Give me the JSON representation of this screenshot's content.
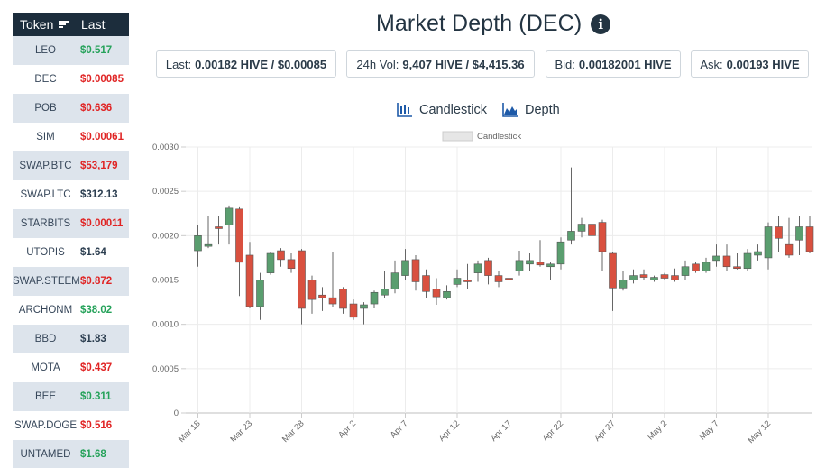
{
  "token_table": {
    "header_token": "Token",
    "header_last": "Last",
    "rows": [
      {
        "token": "LEO",
        "last": "$0.517",
        "trend": "up"
      },
      {
        "token": "DEC",
        "last": "$0.00085",
        "trend": "down"
      },
      {
        "token": "POB",
        "last": "$0.636",
        "trend": "down"
      },
      {
        "token": "SIM",
        "last": "$0.00061",
        "trend": "down"
      },
      {
        "token": "SWAP.BTC",
        "last": "$53,179",
        "trend": "down"
      },
      {
        "token": "SWAP.LTC",
        "last": "$312.13",
        "trend": "flat"
      },
      {
        "token": "STARBITS",
        "last": "$0.00011",
        "trend": "down"
      },
      {
        "token": "UTOPIS",
        "last": "$1.64",
        "trend": "flat"
      },
      {
        "token": "SWAP.STEEM",
        "last": "$0.872",
        "trend": "down"
      },
      {
        "token": "ARCHONM",
        "last": "$38.02",
        "trend": "up"
      },
      {
        "token": "BBD",
        "last": "$1.83",
        "trend": "flat"
      },
      {
        "token": "MOTA",
        "last": "$0.437",
        "trend": "down"
      },
      {
        "token": "BEE",
        "last": "$0.311",
        "trend": "up"
      },
      {
        "token": "SWAP.DOGE",
        "last": "$0.516",
        "trend": "down"
      },
      {
        "token": "UNTAMED",
        "last": "$1.68",
        "trend": "up"
      }
    ]
  },
  "title": "Market Depth (DEC)",
  "stats": {
    "last_label": "Last:",
    "last_value": "0.00182 HIVE / $0.00085",
    "vol_label": "24h Vol:",
    "vol_value": "9,407 HIVE / $4,415.36",
    "bid_label": "Bid:",
    "bid_value": "0.00182001 HIVE",
    "ask_label": "Ask:",
    "ask_value": "0.00193 HIVE"
  },
  "chart_types": {
    "candlestick": "Candlestick",
    "depth": "Depth"
  },
  "colors": {
    "up": "#5a9e6f",
    "down": "#d9503f",
    "header_bg": "#1c2d3c",
    "accent": "#1e5aa8"
  },
  "chart_data": {
    "type": "candlestick",
    "legend": "Candlestick",
    "ylim": [
      0,
      0.003
    ],
    "y_ticks": [
      "0.0030",
      "0.0025",
      "0.0020",
      "0.0015",
      "0.0010",
      "0.0005",
      "0"
    ],
    "x_ticks": [
      "Mar 18",
      "Mar 23",
      "Mar 28",
      "Apr 2",
      "Apr 7",
      "Apr 12",
      "Apr 17",
      "Apr 22",
      "Apr 27",
      "May 2",
      "May 7",
      "May 12"
    ],
    "candles": [
      {
        "date": "Mar 18",
        "o": 0.00183,
        "h": 0.00212,
        "l": 0.00165,
        "c": 0.002
      },
      {
        "date": "Mar 19",
        "o": 0.00188,
        "h": 0.00222,
        "l": 0.00186,
        "c": 0.0019
      },
      {
        "date": "Mar 20",
        "o": 0.0021,
        "h": 0.00222,
        "l": 0.0019,
        "c": 0.00208
      },
      {
        "date": "Mar 21",
        "o": 0.00212,
        "h": 0.00234,
        "l": 0.0019,
        "c": 0.00231
      },
      {
        "date": "Mar 22",
        "o": 0.0023,
        "h": 0.00232,
        "l": 0.00132,
        "c": 0.0017
      },
      {
        "date": "Mar 23",
        "o": 0.00178,
        "h": 0.00193,
        "l": 0.00118,
        "c": 0.0012
      },
      {
        "date": "Mar 24",
        "o": 0.0012,
        "h": 0.00158,
        "l": 0.00105,
        "c": 0.0015
      },
      {
        "date": "Mar 25",
        "o": 0.00158,
        "h": 0.00182,
        "l": 0.00156,
        "c": 0.0018
      },
      {
        "date": "Mar 26",
        "o": 0.00183,
        "h": 0.00186,
        "l": 0.00165,
        "c": 0.00173
      },
      {
        "date": "Mar 27",
        "o": 0.00173,
        "h": 0.0018,
        "l": 0.00158,
        "c": 0.00163
      },
      {
        "date": "Mar 28",
        "o": 0.00183,
        "h": 0.00185,
        "l": 0.001,
        "c": 0.00118
      },
      {
        "date": "Mar 29",
        "o": 0.0015,
        "h": 0.00155,
        "l": 0.00112,
        "c": 0.00128
      },
      {
        "date": "Mar 30",
        "o": 0.00133,
        "h": 0.00142,
        "l": 0.00115,
        "c": 0.0013
      },
      {
        "date": "Mar 31",
        "o": 0.0013,
        "h": 0.00182,
        "l": 0.0012,
        "c": 0.00123
      },
      {
        "date": "Apr 1",
        "o": 0.0014,
        "h": 0.00142,
        "l": 0.00112,
        "c": 0.00118
      },
      {
        "date": "Apr 2",
        "o": 0.00123,
        "h": 0.00128,
        "l": 0.00105,
        "c": 0.00108
      },
      {
        "date": "Apr 3",
        "o": 0.00118,
        "h": 0.00125,
        "l": 0.001,
        "c": 0.00122
      },
      {
        "date": "Apr 4",
        "o": 0.00123,
        "h": 0.00138,
        "l": 0.00118,
        "c": 0.00136
      },
      {
        "date": "Apr 5",
        "o": 0.00133,
        "h": 0.0016,
        "l": 0.0013,
        "c": 0.0014
      },
      {
        "date": "Apr 6",
        "o": 0.0014,
        "h": 0.00172,
        "l": 0.00135,
        "c": 0.00158
      },
      {
        "date": "Apr 7",
        "o": 0.00155,
        "h": 0.00185,
        "l": 0.0015,
        "c": 0.00172
      },
      {
        "date": "Apr 8",
        "o": 0.00173,
        "h": 0.00178,
        "l": 0.00138,
        "c": 0.00148
      },
      {
        "date": "Apr 9",
        "o": 0.00155,
        "h": 0.00162,
        "l": 0.0013,
        "c": 0.00137
      },
      {
        "date": "Apr 10",
        "o": 0.0014,
        "h": 0.00152,
        "l": 0.00122,
        "c": 0.00131
      },
      {
        "date": "Apr 11",
        "o": 0.0013,
        "h": 0.00144,
        "l": 0.00128,
        "c": 0.00137
      },
      {
        "date": "Apr 12",
        "o": 0.00145,
        "h": 0.00162,
        "l": 0.00142,
        "c": 0.00152
      },
      {
        "date": "Apr 13",
        "o": 0.0015,
        "h": 0.00168,
        "l": 0.0014,
        "c": 0.00148
      },
      {
        "date": "Apr 14",
        "o": 0.00158,
        "h": 0.00172,
        "l": 0.00148,
        "c": 0.00168
      },
      {
        "date": "Apr 15",
        "o": 0.00172,
        "h": 0.00175,
        "l": 0.00145,
        "c": 0.00155
      },
      {
        "date": "Apr 16",
        "o": 0.00155,
        "h": 0.0016,
        "l": 0.00142,
        "c": 0.00148
      },
      {
        "date": "Apr 17",
        "o": 0.00152,
        "h": 0.00155,
        "l": 0.00148,
        "c": 0.00151
      },
      {
        "date": "Apr 18",
        "o": 0.0016,
        "h": 0.00183,
        "l": 0.00155,
        "c": 0.00172
      },
      {
        "date": "Apr 19",
        "o": 0.00168,
        "h": 0.0018,
        "l": 0.0016,
        "c": 0.00172
      },
      {
        "date": "Apr 20",
        "o": 0.0017,
        "h": 0.00195,
        "l": 0.00165,
        "c": 0.00167
      },
      {
        "date": "Apr 21",
        "o": 0.00165,
        "h": 0.0017,
        "l": 0.0015,
        "c": 0.00168
      },
      {
        "date": "Apr 22",
        "o": 0.00168,
        "h": 0.00198,
        "l": 0.00162,
        "c": 0.00193
      },
      {
        "date": "Apr 23",
        "o": 0.00195,
        "h": 0.00277,
        "l": 0.0019,
        "c": 0.00205
      },
      {
        "date": "Apr 24",
        "o": 0.00205,
        "h": 0.0022,
        "l": 0.00198,
        "c": 0.00213
      },
      {
        "date": "Apr 25",
        "o": 0.00213,
        "h": 0.00216,
        "l": 0.00178,
        "c": 0.002
      },
      {
        "date": "Apr 26",
        "o": 0.00215,
        "h": 0.00218,
        "l": 0.0016,
        "c": 0.00182
      },
      {
        "date": "Apr 27",
        "o": 0.0018,
        "h": 0.00182,
        "l": 0.00115,
        "c": 0.00141
      },
      {
        "date": "Apr 28",
        "o": 0.00141,
        "h": 0.0016,
        "l": 0.00138,
        "c": 0.0015
      },
      {
        "date": "Apr 29",
        "o": 0.0015,
        "h": 0.00162,
        "l": 0.00146,
        "c": 0.00155
      },
      {
        "date": "Apr 30",
        "o": 0.00156,
        "h": 0.00162,
        "l": 0.0015,
        "c": 0.00153
      },
      {
        "date": "May 1",
        "o": 0.0015,
        "h": 0.00155,
        "l": 0.00148,
        "c": 0.00153
      },
      {
        "date": "May 2",
        "o": 0.00156,
        "h": 0.00158,
        "l": 0.0015,
        "c": 0.00152
      },
      {
        "date": "May 3",
        "o": 0.00155,
        "h": 0.00163,
        "l": 0.00148,
        "c": 0.0015
      },
      {
        "date": "May 4",
        "o": 0.00155,
        "h": 0.00172,
        "l": 0.0015,
        "c": 0.00165
      },
      {
        "date": "May 5",
        "o": 0.00168,
        "h": 0.0017,
        "l": 0.00158,
        "c": 0.0016
      },
      {
        "date": "May 6",
        "o": 0.0016,
        "h": 0.00175,
        "l": 0.00158,
        "c": 0.0017
      },
      {
        "date": "May 7",
        "o": 0.00172,
        "h": 0.0019,
        "l": 0.00165,
        "c": 0.00177
      },
      {
        "date": "May 8",
        "o": 0.00177,
        "h": 0.0019,
        "l": 0.0016,
        "c": 0.00165
      },
      {
        "date": "May 9",
        "o": 0.00165,
        "h": 0.0018,
        "l": 0.00162,
        "c": 0.00163
      },
      {
        "date": "May 10",
        "o": 0.00163,
        "h": 0.00185,
        "l": 0.0016,
        "c": 0.0018
      },
      {
        "date": "May 11",
        "o": 0.00178,
        "h": 0.0019,
        "l": 0.00172,
        "c": 0.00182
      },
      {
        "date": "May 12",
        "o": 0.00175,
        "h": 0.00215,
        "l": 0.00162,
        "c": 0.0021
      },
      {
        "date": "May 13",
        "o": 0.0021,
        "h": 0.00222,
        "l": 0.00182,
        "c": 0.00197
      },
      {
        "date": "May 14",
        "o": 0.0019,
        "h": 0.0022,
        "l": 0.00175,
        "c": 0.00178
      },
      {
        "date": "May 15",
        "o": 0.00195,
        "h": 0.00222,
        "l": 0.00178,
        "c": 0.0021
      },
      {
        "date": "May 16",
        "o": 0.0021,
        "h": 0.00222,
        "l": 0.0018,
        "c": 0.00182
      }
    ]
  }
}
